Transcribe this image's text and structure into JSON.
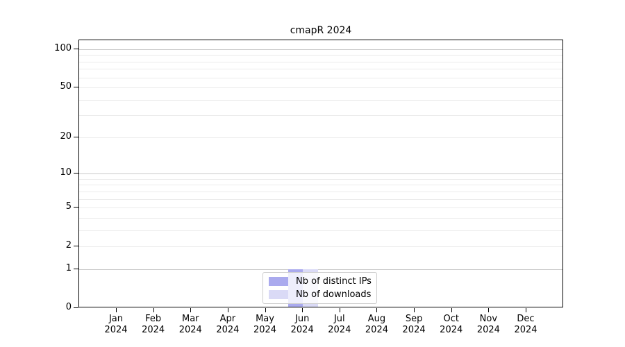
{
  "chart_data": {
    "type": "bar",
    "title": "cmapR 2024",
    "months": [
      "Jan",
      "Feb",
      "Mar",
      "Apr",
      "May",
      "Jun",
      "Jul",
      "Aug",
      "Sep",
      "Oct",
      "Nov",
      "Dec"
    ],
    "year_label": "2024",
    "series": [
      {
        "name": "Nb of distinct IPs",
        "color": "#aaaaee",
        "values": [
          0,
          0,
          0,
          0,
          0,
          1,
          0,
          0,
          0,
          0,
          0,
          0
        ]
      },
      {
        "name": "Nb of downloads",
        "color": "#dadaf6",
        "values": [
          0,
          0,
          0,
          0,
          0,
          1,
          0,
          0,
          0,
          0,
          0,
          0
        ]
      }
    ],
    "y_axis": {
      "scale": "log1p",
      "tick_values": [
        0,
        1,
        2,
        5,
        10,
        20,
        50,
        100
      ],
      "minor_gridline_values": [
        2,
        3,
        4,
        5,
        6,
        7,
        8,
        9,
        20,
        30,
        40,
        50,
        60,
        70,
        80,
        90
      ],
      "major_gridline_values": [
        1,
        10,
        100
      ],
      "range": [
        0,
        118
      ]
    },
    "grid": "horizontal",
    "legend_position": "bottom-center",
    "colors": {
      "axis": "#000000",
      "grid_minor": "#ebebeb",
      "grid_major": "#c8c8c8",
      "background": "#ffffff",
      "legend_border": "#cccccc"
    }
  }
}
